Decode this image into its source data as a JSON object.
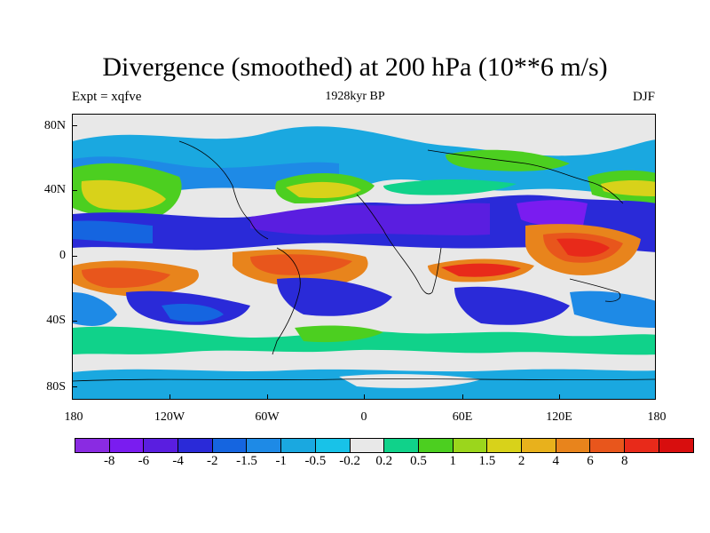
{
  "header": {
    "title": "Divergence (smoothed) at 200 hPa (10**6 m/s)",
    "left_label": "Expt = xqfve",
    "center_label": "1928kyr BP",
    "right_label": "DJF"
  },
  "axes": {
    "y_ticks": [
      "80N",
      "40N",
      "0",
      "40S",
      "80S"
    ],
    "x_ticks": [
      "180",
      "120W",
      "60W",
      "0",
      "60E",
      "120E",
      "180"
    ]
  },
  "colorbar": {
    "colors": [
      "#8a2be2",
      "#7a1cf0",
      "#5a1ee0",
      "#2a2ad8",
      "#1565e0",
      "#1e8ae6",
      "#1aa8e0",
      "#18c2e8",
      "#e8e8e8",
      "#10d28a",
      "#4ccf20",
      "#9bd61c",
      "#d8d21a",
      "#e8b11c",
      "#e8841c",
      "#e8561c",
      "#e82a1a",
      "#d80e0e"
    ],
    "labels": [
      "-8",
      "-6",
      "-4",
      "-2",
      "-1.5",
      "-1",
      "-0.5",
      "-0.2",
      "0.2",
      "0.5",
      "1",
      "1.5",
      "2",
      "4",
      "6",
      "8"
    ]
  }
}
